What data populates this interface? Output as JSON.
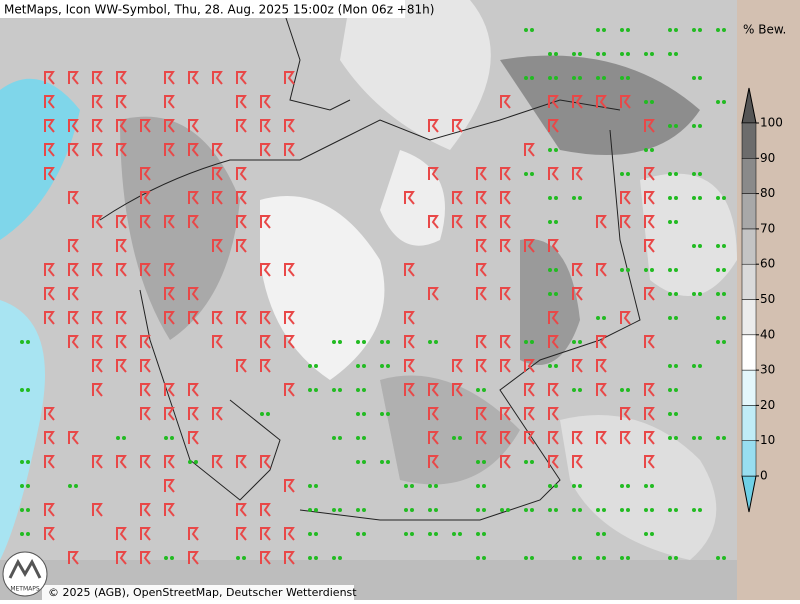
{
  "header": {
    "title": "MetMaps, Icon WW-Symbol, Thu, 28. Aug. 2025 15:00z (Mon 06z +81h)"
  },
  "colorbar": {
    "label": "% Bew.",
    "ticks": [
      0,
      10,
      20,
      30,
      40,
      50,
      60,
      70,
      80,
      90,
      100
    ],
    "colors": [
      "#6fd0e6",
      "#98def0",
      "#c0ecf6",
      "#e4f7fb",
      "#ffffff",
      "#ececec",
      "#dadada",
      "#c4c4c4",
      "#a8a8a8",
      "#8a8a8a",
      "#6c6c6c",
      "#555555"
    ]
  },
  "footer": {
    "copyright": "© 2025 (AGB), OpenStreetMap, Deutscher Wetterdienst",
    "logo": "METMAPS"
  }
}
